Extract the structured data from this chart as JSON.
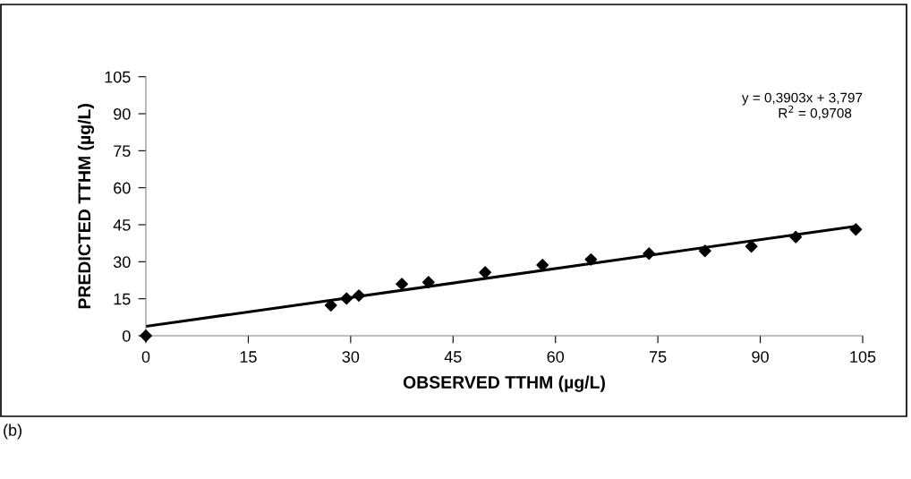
{
  "chart_data": {
    "type": "scatter",
    "xlabel": "OBSERVED TTHM (µg/L)",
    "ylabel": "PREDICTED TTHM (µg/L)",
    "x": [
      0,
      27.1,
      29.4,
      31.2,
      37.5,
      41.4,
      49.7,
      58.1,
      65.2,
      73.7,
      81.9,
      88.7,
      95.2,
      104.0
    ],
    "series": [
      {
        "color": "#000000",
        "marker": "diamond",
        "values": [
          0,
          12.3,
          15.1,
          16.3,
          21.0,
          21.7,
          25.7,
          28.7,
          30.9,
          33.3,
          34.4,
          36.2,
          40.0,
          43.1
        ]
      },
      {
        "type": "line",
        "color": "#000000",
        "marker": "none",
        "line_style": "solid",
        "x": [
          0,
          104.0
        ],
        "values": [
          3.8,
          44.4
        ]
      }
    ],
    "xlim": [
      0,
      105
    ],
    "xticks": [
      0,
      15,
      30,
      45,
      60,
      75,
      90,
      105
    ],
    "ylim": [
      0,
      105
    ],
    "yticks": [
      0,
      15,
      30,
      45,
      60,
      75,
      90,
      105
    ],
    "grid": false,
    "legend": false,
    "annotations": [
      "y = 0,3903x + 3,797",
      "R$^{2}$ = 0,9708",
      "(b)"
    ]
  }
}
